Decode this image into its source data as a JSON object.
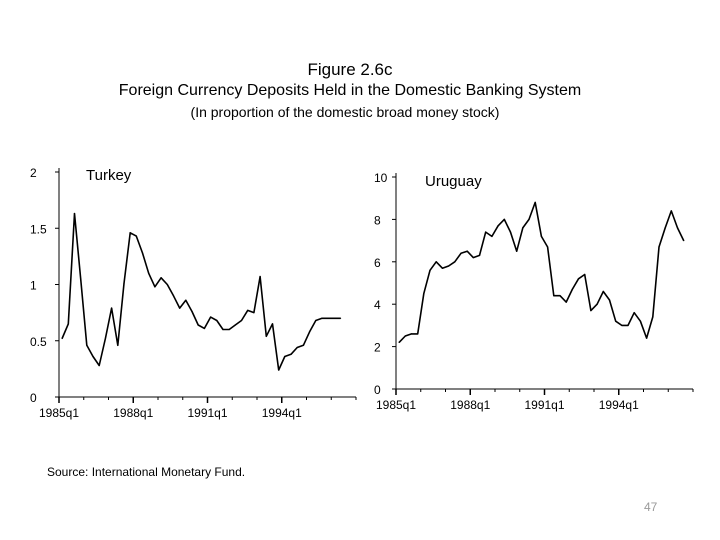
{
  "figure_number": "Figure 2.6c",
  "title": "Foreign Currency Deposits Held in the Domestic Banking System",
  "subtitle": "(In proportion of the domestic broad money stock)",
  "source": "Source: International Monetary Fund.",
  "page_number": "47",
  "colors": {
    "line": "#000000",
    "background": "#ffffff",
    "page_number": "#9a9a9a"
  },
  "chart_data": [
    {
      "type": "line",
      "panel_label": "Turkey",
      "x_ticks": [
        "1985q1",
        "1988q1",
        "1991q1",
        "1994q1"
      ],
      "x_tick_index": [
        0,
        12,
        24,
        36
      ],
      "y_ticks": [
        "0",
        "0.5",
        "1",
        "1.5",
        "2"
      ],
      "ylim": [
        0,
        2
      ],
      "n_periods": 48,
      "series": [
        {
          "name": "Turkey",
          "x": [
            0,
            1,
            2,
            3,
            4,
            5,
            6,
            7,
            8,
            9,
            10,
            11,
            12,
            13,
            14,
            15,
            16,
            17,
            18,
            19,
            20,
            21,
            22,
            23,
            24,
            25,
            26,
            27,
            28,
            29,
            30,
            31,
            32,
            33,
            34,
            35,
            36,
            37,
            38,
            39,
            40,
            41,
            42,
            43,
            44,
            45
          ],
          "values": [
            0.52,
            0.65,
            1.63,
            1.05,
            0.46,
            0.36,
            0.28,
            0.52,
            0.79,
            0.46,
            1.01,
            1.46,
            1.43,
            1.28,
            1.1,
            0.98,
            1.06,
            1.0,
            0.9,
            0.79,
            0.86,
            0.76,
            0.64,
            0.61,
            0.71,
            0.68,
            0.6,
            0.6,
            0.64,
            0.68,
            0.77,
            0.75,
            1.07,
            0.54,
            0.65,
            0.24,
            0.36,
            0.38,
            0.44,
            0.46,
            0.58,
            0.68,
            0.7,
            0.7,
            0.7,
            0.7
          ]
        }
      ]
    },
    {
      "type": "line",
      "panel_label": "Uruguay",
      "x_ticks": [
        "1985q1",
        "1988q1",
        "1991q1",
        "1994q1"
      ],
      "x_tick_index": [
        0,
        12,
        24,
        36
      ],
      "y_ticks": [
        "0",
        "2",
        "4",
        "6",
        "8",
        "10"
      ],
      "ylim": [
        0,
        10
      ],
      "n_periods": 48,
      "series": [
        {
          "name": "Uruguay",
          "x": [
            0,
            1,
            2,
            3,
            4,
            5,
            6,
            7,
            8,
            9,
            10,
            11,
            12,
            13,
            14,
            15,
            16,
            17,
            18,
            19,
            20,
            21,
            22,
            23,
            24,
            25,
            26,
            27,
            28,
            29,
            30,
            31,
            32,
            33,
            34,
            35,
            36,
            37,
            38,
            39,
            40,
            41,
            42,
            43,
            44,
            45,
            46
          ],
          "values": [
            2.2,
            2.5,
            2.6,
            2.6,
            4.5,
            5.6,
            6.0,
            5.7,
            5.8,
            6.0,
            6.4,
            6.5,
            6.2,
            6.3,
            7.4,
            7.2,
            7.7,
            8.0,
            7.4,
            6.5,
            7.6,
            8.0,
            8.8,
            7.2,
            6.7,
            4.4,
            4.4,
            4.1,
            4.7,
            5.2,
            5.4,
            3.7,
            4.0,
            4.6,
            4.2,
            3.2,
            3.0,
            3.0,
            3.6,
            3.2,
            2.4,
            3.4,
            6.7,
            7.6,
            8.4,
            7.6,
            7.0
          ]
        }
      ]
    }
  ]
}
